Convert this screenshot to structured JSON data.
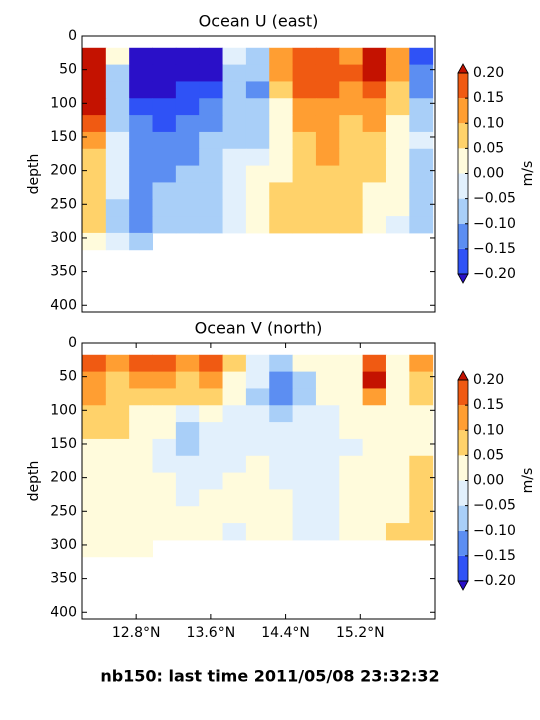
{
  "chart_data": [
    {
      "type": "contour",
      "title": "Ocean U (east)",
      "y_label": "depth",
      "colorbar_label": "m/s",
      "x": [
        12.35,
        12.6,
        12.85,
        13.1,
        13.35,
        13.6,
        13.85,
        14.1,
        14.35,
        14.6,
        14.85,
        15.1,
        15.35,
        15.6,
        15.85
      ],
      "y": [
        30,
        55,
        80,
        105,
        130,
        155,
        180,
        205,
        230,
        255,
        280,
        305
      ],
      "z": [
        [
          0.22,
          0.0,
          -0.22,
          -0.22,
          -0.22,
          -0.22,
          -0.04,
          -0.08,
          0.12,
          0.17,
          0.15,
          0.12,
          0.22,
          0.12,
          -0.17
        ],
        [
          0.22,
          -0.06,
          -0.22,
          -0.22,
          -0.22,
          -0.22,
          -0.06,
          -0.1,
          0.1,
          0.17,
          0.17,
          0.15,
          0.22,
          0.1,
          -0.15
        ],
        [
          0.22,
          -0.08,
          -0.22,
          -0.22,
          -0.2,
          -0.2,
          -0.07,
          -0.12,
          0.07,
          0.15,
          0.17,
          0.13,
          0.17,
          0.07,
          -0.12
        ],
        [
          0.22,
          -0.08,
          -0.17,
          -0.17,
          -0.17,
          -0.12,
          -0.08,
          -0.1,
          0.03,
          0.12,
          0.12,
          0.1,
          0.12,
          0.06,
          -0.08
        ],
        [
          0.17,
          -0.06,
          -0.15,
          -0.17,
          -0.15,
          -0.12,
          -0.07,
          -0.08,
          0.02,
          0.1,
          0.12,
          0.07,
          0.1,
          0.03,
          -0.06
        ],
        [
          0.12,
          -0.04,
          -0.13,
          -0.15,
          -0.12,
          -0.1,
          -0.06,
          -0.06,
          0.02,
          0.07,
          0.12,
          0.06,
          0.07,
          0.03,
          -0.04
        ],
        [
          0.07,
          -0.03,
          -0.12,
          -0.12,
          -0.12,
          -0.08,
          -0.04,
          -0.02,
          0.03,
          0.07,
          0.1,
          0.07,
          0.06,
          0.02,
          -0.06
        ],
        [
          0.07,
          -0.02,
          -0.12,
          -0.12,
          -0.08,
          -0.07,
          -0.03,
          0.0,
          0.04,
          0.06,
          0.08,
          0.07,
          0.06,
          0.03,
          -0.07
        ],
        [
          0.08,
          -0.04,
          -0.12,
          -0.1,
          -0.08,
          -0.07,
          -0.03,
          0.02,
          0.06,
          0.07,
          0.07,
          0.07,
          0.04,
          0.02,
          -0.1
        ],
        [
          0.08,
          -0.06,
          -0.12,
          -0.08,
          -0.07,
          -0.07,
          -0.02,
          0.03,
          0.07,
          0.07,
          0.07,
          0.06,
          0.03,
          0.0,
          -0.08
        ],
        [
          0.06,
          -0.06,
          -0.12,
          -0.08,
          -0.07,
          -0.07,
          -0.02,
          0.03,
          0.07,
          0.06,
          0.06,
          0.06,
          0.03,
          -0.02,
          -0.06
        ],
        [
          0.04,
          -0.05,
          -0.1,
          null,
          null,
          null,
          null,
          null,
          null,
          null,
          null,
          null,
          null,
          null,
          null
        ]
      ],
      "xlim": [
        12.22,
        16.0
      ],
      "ylim": [
        410,
        0
      ],
      "yticks": [
        0,
        50,
        100,
        150,
        200,
        250,
        300,
        350,
        400
      ],
      "levels": [
        -0.2,
        -0.15,
        -0.1,
        -0.05,
        0.0,
        0.05,
        0.1,
        0.15,
        0.2
      ],
      "colors": [
        "#2a10c8",
        "#2f52f6",
        "#5c8ef2",
        "#a9cff8",
        "#e2f0fc",
        "#fffbdc",
        "#ffd26a",
        "#ff9e32",
        "#f05a12",
        "#c41200"
      ],
      "cbticks": [
        {
          "value": 0.2,
          "label": "0.20"
        },
        {
          "value": 0.15,
          "label": "0.15"
        },
        {
          "value": 0.1,
          "label": "0.10"
        },
        {
          "value": 0.05,
          "label": "0.05"
        },
        {
          "value": 0.0,
          "label": "0.00"
        },
        {
          "value": -0.05,
          "label": "−0.05"
        },
        {
          "value": -0.1,
          "label": "−0.10"
        },
        {
          "value": -0.15,
          "label": "−0.15"
        },
        {
          "value": -0.2,
          "label": "−0.20"
        }
      ]
    },
    {
      "type": "contour",
      "title": "Ocean V (north)",
      "y_label": "depth",
      "colorbar_label": "m/s",
      "x": [
        12.35,
        12.6,
        12.85,
        13.1,
        13.35,
        13.6,
        13.85,
        14.1,
        14.35,
        14.6,
        14.85,
        15.1,
        15.35,
        15.6,
        15.85
      ],
      "y": [
        30,
        55,
        80,
        105,
        130,
        155,
        180,
        205,
        230,
        255,
        280,
        305
      ],
      "z": [
        [
          0.17,
          0.1,
          0.15,
          0.17,
          0.1,
          0.15,
          0.06,
          -0.02,
          -0.06,
          0.03,
          0.02,
          0.03,
          0.17,
          0.03,
          0.1
        ],
        [
          0.12,
          0.07,
          0.12,
          0.1,
          0.08,
          0.12,
          0.03,
          -0.03,
          -0.15,
          -0.06,
          0.02,
          0.04,
          0.2,
          0.03,
          0.07
        ],
        [
          0.1,
          0.08,
          0.07,
          0.07,
          0.06,
          0.07,
          0.0,
          -0.06,
          -0.12,
          -0.07,
          0.0,
          0.03,
          0.12,
          0.04,
          0.06
        ],
        [
          0.07,
          0.07,
          0.04,
          0.03,
          -0.02,
          0.03,
          -0.04,
          -0.05,
          -0.06,
          -0.04,
          -0.02,
          0.02,
          0.04,
          0.03,
          0.02
        ],
        [
          0.06,
          0.05,
          0.02,
          0.0,
          -0.06,
          -0.03,
          -0.04,
          -0.03,
          -0.03,
          -0.03,
          -0.03,
          0.01,
          0.02,
          0.02,
          0.02
        ],
        [
          0.02,
          0.02,
          0.01,
          -0.02,
          -0.07,
          -0.05,
          -0.03,
          -0.02,
          -0.03,
          -0.03,
          -0.02,
          -0.01,
          0.0,
          0.02,
          0.03
        ],
        [
          0.02,
          0.01,
          0.02,
          -0.01,
          -0.04,
          -0.03,
          -0.02,
          0.0,
          -0.02,
          -0.03,
          -0.02,
          0.0,
          0.01,
          0.02,
          0.06
        ],
        [
          0.02,
          0.01,
          0.02,
          0.01,
          -0.02,
          -0.02,
          0.0,
          0.02,
          -0.01,
          -0.03,
          -0.01,
          0.01,
          0.0,
          0.02,
          0.07
        ],
        [
          0.01,
          0.02,
          0.02,
          0.02,
          -0.02,
          0.01,
          0.0,
          0.02,
          0.01,
          -0.02,
          -0.02,
          0.01,
          0.0,
          0.02,
          0.05
        ],
        [
          0.03,
          0.02,
          0.03,
          0.01,
          0.0,
          0.02,
          0.0,
          0.02,
          0.02,
          -0.02,
          -0.03,
          0.0,
          0.0,
          0.03,
          0.07
        ],
        [
          0.03,
          0.02,
          0.03,
          0.01,
          0.01,
          0.03,
          -0.01,
          0.0,
          0.02,
          -0.02,
          -0.03,
          0.0,
          0.02,
          0.06,
          0.08
        ],
        [
          0.02,
          0.02,
          0.02,
          null,
          null,
          null,
          null,
          null,
          null,
          null,
          null,
          null,
          null,
          null,
          null
        ]
      ],
      "xlim": [
        12.22,
        16.0
      ],
      "ylim": [
        410,
        0
      ],
      "yticks": [
        0,
        50,
        100,
        150,
        200,
        250,
        300,
        350,
        400
      ],
      "xticks": [
        {
          "value": 12.8,
          "label": "12.8°N"
        },
        {
          "value": 13.6,
          "label": "13.6°N"
        },
        {
          "value": 14.4,
          "label": "14.4°N"
        },
        {
          "value": 15.2,
          "label": "15.2°N"
        }
      ],
      "levels": [
        -0.2,
        -0.15,
        -0.1,
        -0.05,
        0.0,
        0.05,
        0.1,
        0.15,
        0.2
      ],
      "colors": [
        "#2a10c8",
        "#2f52f6",
        "#5c8ef2",
        "#a9cff8",
        "#e2f0fc",
        "#fffbdc",
        "#ffd26a",
        "#ff9e32",
        "#f05a12",
        "#c41200"
      ],
      "cbticks": [
        {
          "value": 0.2,
          "label": "0.20"
        },
        {
          "value": 0.15,
          "label": "0.15"
        },
        {
          "value": 0.1,
          "label": "0.10"
        },
        {
          "value": 0.05,
          "label": "0.05"
        },
        {
          "value": 0.0,
          "label": "0.00"
        },
        {
          "value": -0.05,
          "label": "−0.05"
        },
        {
          "value": -0.1,
          "label": "−0.10"
        },
        {
          "value": -0.15,
          "label": "−0.15"
        },
        {
          "value": -0.2,
          "label": "−0.20"
        }
      ]
    }
  ],
  "suptitle": "nb150: last time 2011/05/08 23:32:32"
}
